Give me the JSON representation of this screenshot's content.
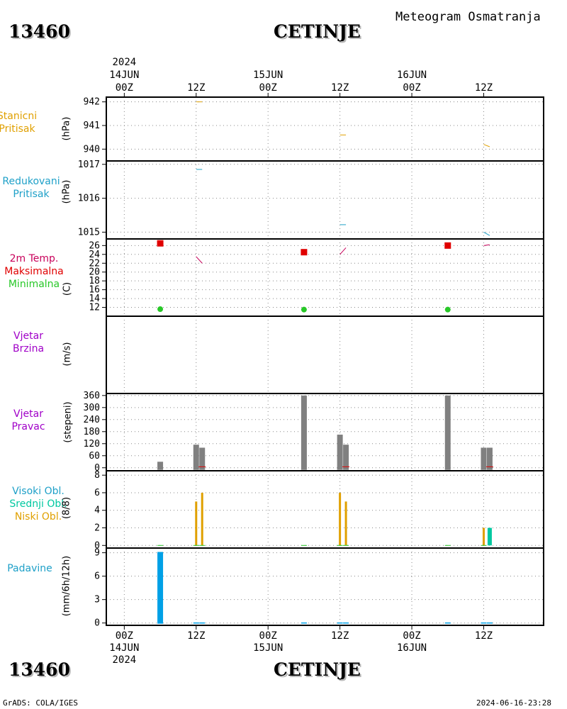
{
  "header": {
    "station_id": "13460",
    "station_name": "CETINJE",
    "subtitle": "Meteogram Osmatranja"
  },
  "footer": {
    "left": "GrADS: COLA/IGES",
    "right": "2024-06-16-23:28"
  },
  "time_axis": {
    "year_label": "2024",
    "ticks": [
      {
        "hour": 0,
        "top": [
          "14JUN",
          "00Z"
        ],
        "bottom": [
          "00Z",
          "14JUN",
          "2024"
        ]
      },
      {
        "hour": 12,
        "top": [
          "12Z"
        ],
        "bottom": [
          "12Z"
        ]
      },
      {
        "hour": 24,
        "top": [
          "15JUN",
          "00Z"
        ],
        "bottom": [
          "00Z",
          "15JUN"
        ]
      },
      {
        "hour": 36,
        "top": [
          "12Z"
        ],
        "bottom": [
          "12Z"
        ]
      },
      {
        "hour": 48,
        "top": [
          "16JUN",
          "00Z"
        ],
        "bottom": [
          "00Z",
          "16JUN"
        ]
      },
      {
        "hour": 60,
        "top": [
          "12Z"
        ],
        "bottom": [
          "12Z"
        ]
      }
    ],
    "xlim_hours": [
      -3,
      70
    ]
  },
  "colors": {
    "orange": "#e0a000",
    "cyan": "#1ea0c8",
    "magenta": "#c8005a",
    "red": "#e00000",
    "green": "#28c828",
    "purple": "#a000c8",
    "gray": "#808080",
    "teal": "#00c8a0",
    "blue": "#00a0e6"
  },
  "panels": {
    "station_pressure": {
      "labels": [
        "Stanicni",
        "Pritisak"
      ],
      "unit": "(hPa)"
    },
    "reduced_pressure": {
      "labels": [
        "Redukovani",
        "Pritisak"
      ],
      "unit": "(hPa)"
    },
    "temperature": {
      "labels": [
        "2m Temp.",
        "Maksimalna",
        "Minimalna"
      ],
      "unit": "(C)"
    },
    "wind_speed": {
      "labels": [
        "Vjetar",
        "Brzina"
      ],
      "unit": "(m/s)"
    },
    "wind_direction": {
      "labels": [
        "Vjetar",
        "Pravac"
      ],
      "unit": "(stepeni)"
    },
    "clouds": {
      "labels": [
        "Visoki Obl.",
        "Srednji Obl.",
        "Niski Obl."
      ],
      "unit": "(8/8)"
    },
    "precipitation": {
      "labels": [
        "Padavine"
      ],
      "unit": "(mm/6h/12h)"
    }
  },
  "chart_data": [
    {
      "type": "line",
      "name": "station_pressure",
      "ylim": [
        939.5,
        942.2
      ],
      "yticks": [
        942,
        941,
        940
      ],
      "ytick_labels": [
        "942",
        "941",
        "940"
      ],
      "series": [
        {
          "color": "orange",
          "points": [
            [
              12,
              942.0
            ],
            [
              13,
              942.0
            ]
          ]
        },
        {
          "color": "orange",
          "points": [
            [
              36,
              940.6
            ],
            [
              37,
              940.6
            ]
          ]
        },
        {
          "color": "orange",
          "points": [
            [
              60,
              940.2
            ],
            [
              61,
              940.1
            ]
          ]
        }
      ]
    },
    {
      "type": "line",
      "name": "reduced_pressure",
      "ylim": [
        1014.8,
        1017.1
      ],
      "yticks": [
        1017,
        1016,
        1015
      ],
      "ytick_labels": [
        "1017",
        "1016",
        "1015"
      ],
      "series": [
        {
          "color": "cyan",
          "points": [
            [
              12,
              1016.85
            ],
            [
              13,
              1016.85
            ]
          ]
        },
        {
          "color": "cyan",
          "points": [
            [
              36,
              1015.22
            ],
            [
              37,
              1015.22
            ]
          ]
        },
        {
          "color": "cyan",
          "points": [
            [
              60,
              1015.0
            ],
            [
              61,
              1014.9
            ]
          ]
        }
      ]
    },
    {
      "type": "scatter",
      "name": "temperature",
      "ylim": [
        10,
        27.5
      ],
      "yticks": [
        12,
        14,
        16,
        18,
        20,
        22,
        24,
        26
      ],
      "ytick_labels": [
        "12",
        "14",
        "16",
        "18",
        "20",
        "22",
        "24",
        "26"
      ],
      "temperature_2m": [
        [
          [
            12,
            23.5
          ],
          [
            13,
            22.0
          ]
        ],
        [
          [
            36,
            24.0
          ],
          [
            37,
            25.5
          ]
        ],
        [
          [
            60,
            26.0
          ],
          [
            61,
            26.2
          ]
        ]
      ],
      "maximum": [
        [
          6,
          26.5
        ],
        [
          30,
          24.5
        ],
        [
          54,
          26.0
        ]
      ],
      "minimum": [
        [
          6,
          11.6
        ],
        [
          30,
          11.5
        ],
        [
          54,
          11.5
        ]
      ]
    },
    {
      "type": "line",
      "name": "wind_speed",
      "ylim": [
        0,
        1
      ],
      "yticks": [],
      "ytick_labels": [],
      "series": []
    },
    {
      "type": "bar",
      "name": "wind_direction",
      "ylim": [
        -15,
        370
      ],
      "yticks": [
        0,
        60,
        120,
        180,
        240,
        300,
        360
      ],
      "ytick_labels": [
        "0",
        "60",
        "120",
        "180",
        "240",
        "300",
        "360"
      ],
      "bars": [
        [
          6,
          30
        ],
        [
          12,
          115
        ],
        [
          13,
          100
        ],
        [
          30,
          360
        ],
        [
          36,
          165
        ],
        [
          37,
          115
        ],
        [
          54,
          360
        ],
        [
          60,
          100
        ],
        [
          61,
          100
        ]
      ],
      "speed_marks": [
        [
          13,
          5
        ],
        [
          37,
          5
        ],
        [
          61,
          5
        ]
      ]
    },
    {
      "type": "bar",
      "name": "clouds",
      "ylim": [
        -0.3,
        8.5
      ],
      "yticks": [
        0,
        2,
        4,
        6,
        8
      ],
      "ytick_labels": [
        "0",
        "2",
        "4",
        "6",
        "8"
      ],
      "low": [
        [
          12,
          5
        ],
        [
          13,
          6
        ],
        [
          36,
          6
        ],
        [
          37,
          5
        ],
        [
          60,
          2
        ]
      ],
      "medium": [
        [
          61,
          2
        ]
      ],
      "high": [],
      "zero_marks": [
        6,
        30,
        54
      ]
    },
    {
      "type": "bar",
      "name": "precipitation",
      "ylim": [
        -0.3,
        9.6
      ],
      "yticks": [
        0,
        3,
        6,
        9
      ],
      "ytick_labels": [
        "0",
        "3",
        "6",
        "9"
      ],
      "bars": [
        [
          6,
          9.1
        ]
      ],
      "zero_marks": [
        12,
        13,
        30,
        36,
        37,
        54,
        60,
        61
      ]
    }
  ]
}
